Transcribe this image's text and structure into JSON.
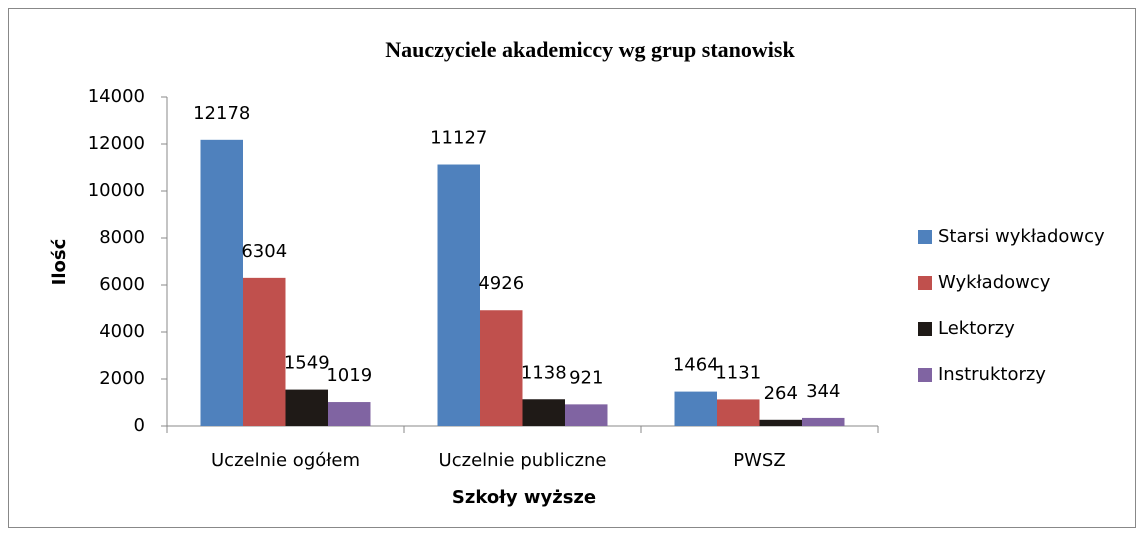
{
  "chart_data": {
    "type": "bar",
    "title": "Nauczyciele akademiccy wg grup stanowisk",
    "x_label": "Szkoły wyższe",
    "y_label": "Ilość",
    "categories": [
      "Uczelnie ogółem",
      "Uczelnie publiczne",
      "PWSZ"
    ],
    "series": [
      {
        "name": "Starsi wykładowcy",
        "color": "#4f81bd",
        "values": [
          12178,
          11127,
          1464
        ]
      },
      {
        "name": "Wykładowcy",
        "color": "#c0504d",
        "values": [
          6304,
          4926,
          1131
        ]
      },
      {
        "name": "Lektorzy",
        "color": "#1f1a17",
        "values": [
          1549,
          1138,
          264
        ]
      },
      {
        "name": "Instruktorzy",
        "color": "#8064a2",
        "values": [
          1019,
          921,
          344
        ]
      }
    ],
    "ylim": [
      0,
      14000
    ],
    "yticks": [
      0,
      2000,
      4000,
      6000,
      8000,
      10000,
      12000,
      14000
    ],
    "grid": false,
    "legend": "right"
  }
}
